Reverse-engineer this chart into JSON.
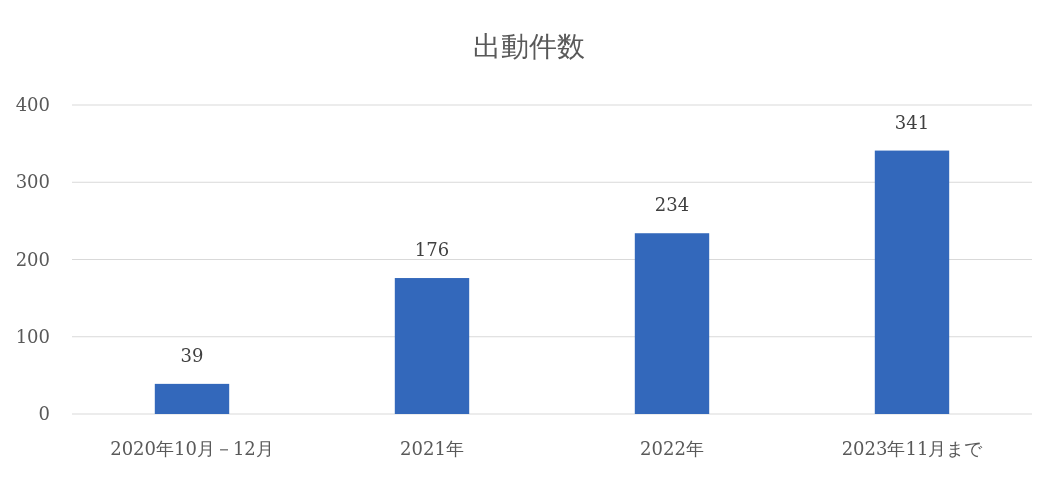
{
  "chart_data": {
    "type": "bar",
    "title": "出動件数",
    "categories": [
      "2020年10月－12月",
      "2021年",
      "2022年",
      "2023年11月まで"
    ],
    "series": [
      {
        "color": "#3368bb",
        "values": [
          39,
          176,
          234,
          341
        ]
      }
    ],
    "ylim": [
      0,
      400
    ],
    "yticks": [
      0,
      100,
      200,
      300,
      400
    ],
    "grid": "y",
    "data_labels": true
  }
}
